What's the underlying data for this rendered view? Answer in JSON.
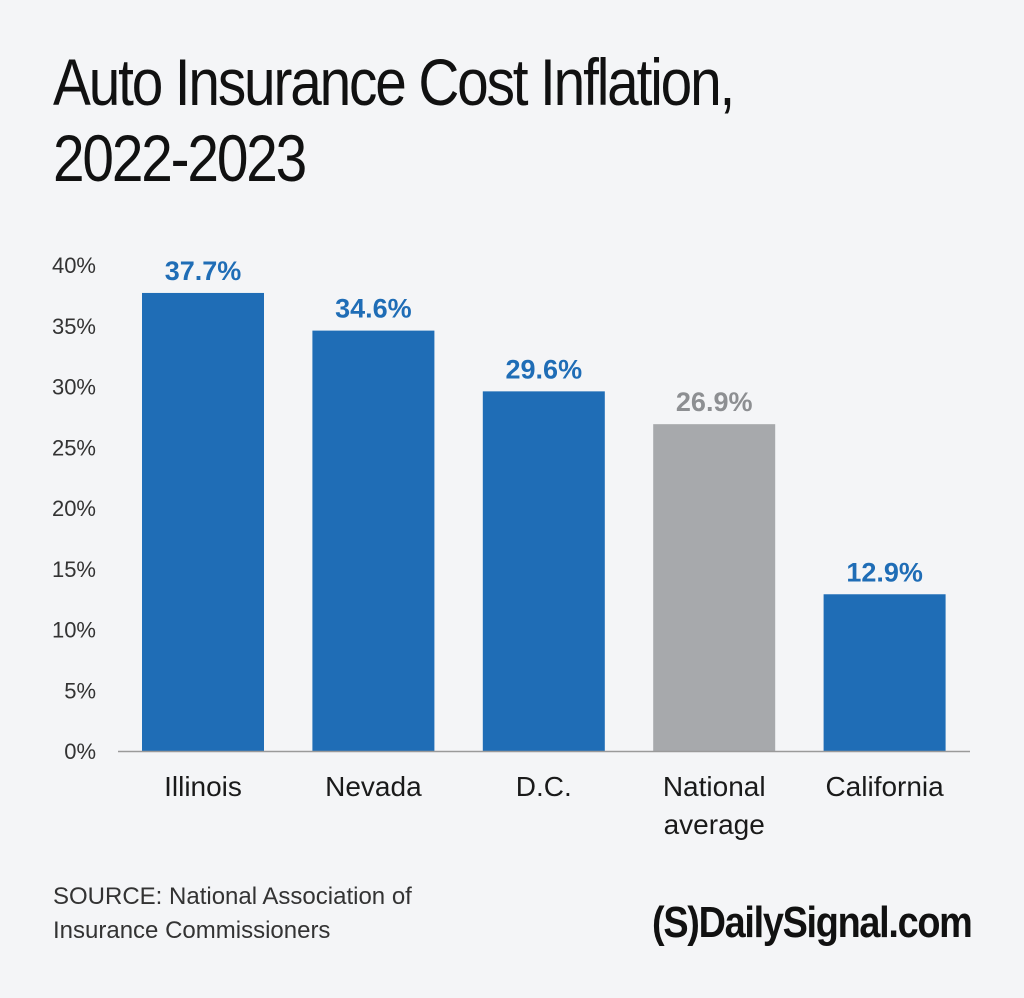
{
  "title_lines": [
    "Auto Insurance Cost Inflation,",
    "2022-2023"
  ],
  "source_lines": [
    "SOURCE: National Association of",
    "Insurance Commissioners"
  ],
  "brand": "(S)DailySignal.com",
  "colors": {
    "highlight_bar": "#1f6db6",
    "average_bar": "#a7a9ac",
    "highlight_label": "#1f6db6",
    "average_label": "#8d8f92",
    "axis_text": "#333333",
    "axis_line": "#9a9a9a"
  },
  "chart_data": {
    "type": "bar",
    "categories": [
      "Illinois",
      "Nevada",
      "D.C.",
      "National average",
      "California"
    ],
    "category_label_lines": [
      [
        "Illinois"
      ],
      [
        "Nevada"
      ],
      [
        "D.C."
      ],
      [
        "National",
        "average"
      ],
      [
        "California"
      ]
    ],
    "values": [
      37.7,
      34.6,
      29.6,
      26.9,
      12.9
    ],
    "data_labels": [
      "37.7%",
      "34.6%",
      "29.6%",
      "26.9%",
      "12.9%"
    ],
    "bar_kind": [
      "highlight",
      "highlight",
      "highlight",
      "average",
      "highlight"
    ],
    "ylim": [
      0,
      40
    ],
    "yticks": [
      0,
      5,
      10,
      15,
      20,
      25,
      30,
      35,
      40
    ],
    "ytick_labels": [
      "0%",
      "5%",
      "10%",
      "15%",
      "20%",
      "25%",
      "30%",
      "35%",
      "40%"
    ],
    "title": "Auto Insurance Cost Inflation, 2022-2023",
    "xlabel": "",
    "ylabel": "",
    "grid": false,
    "legend": "none"
  }
}
